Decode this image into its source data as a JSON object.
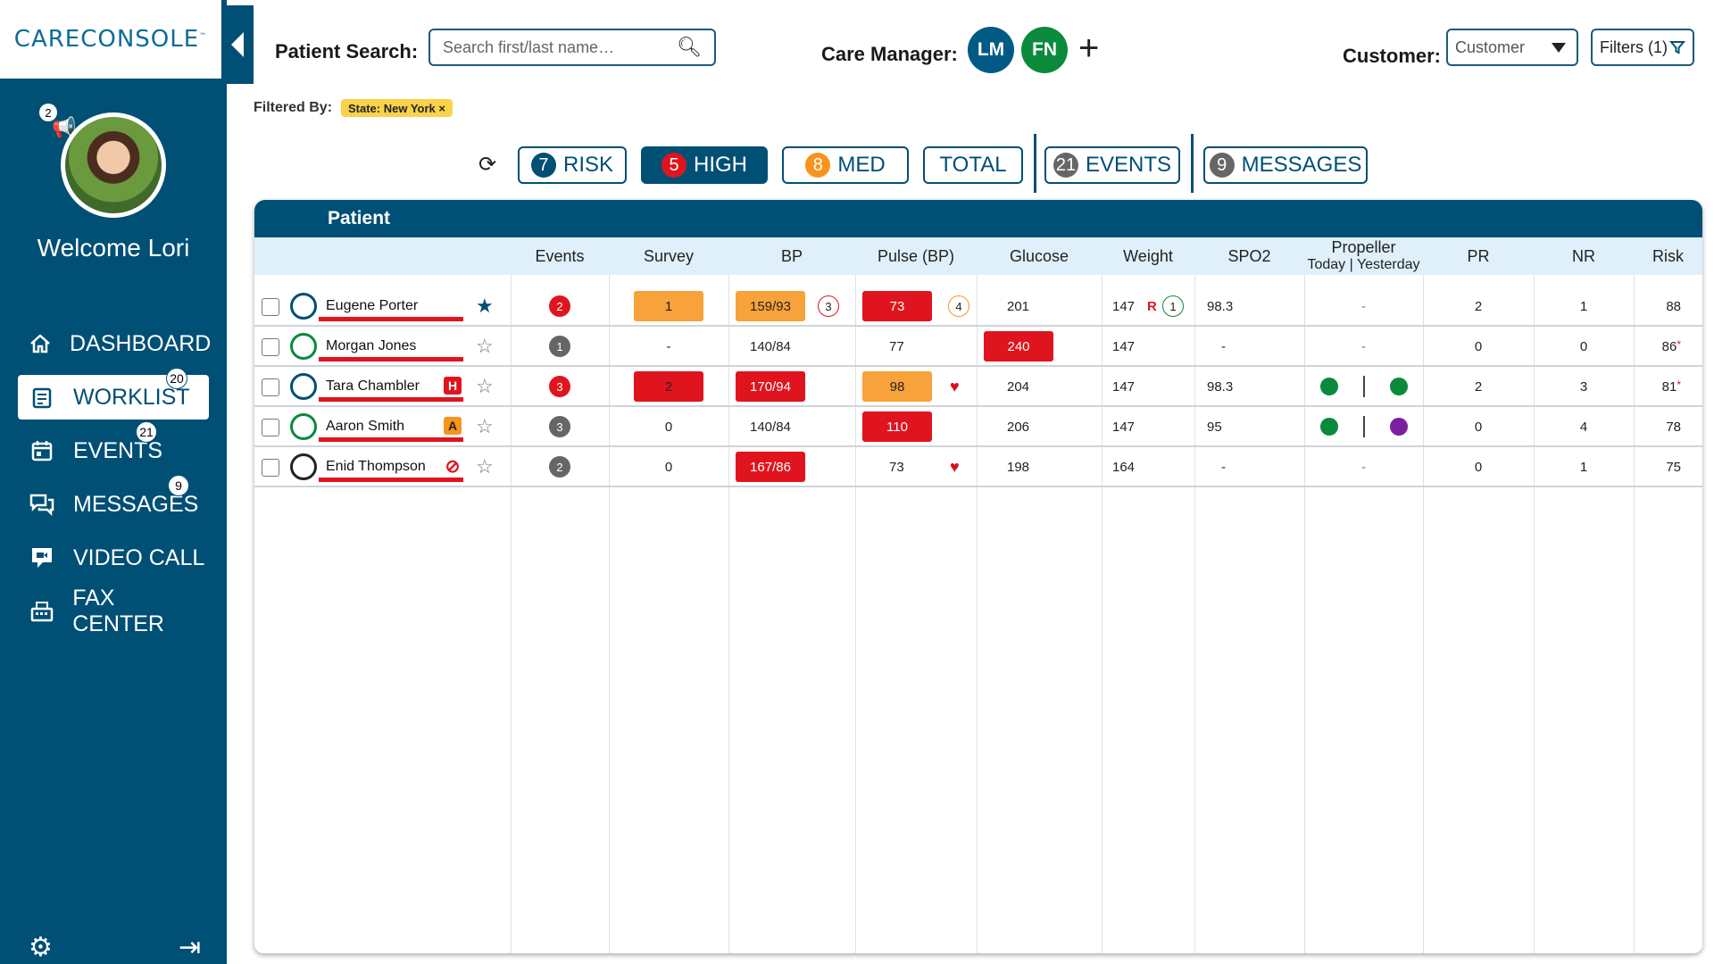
{
  "app": {
    "logo": "CARECONSOLE",
    "logo_tm": "™"
  },
  "sidebar": {
    "notif_count": "2",
    "welcome": "Welcome Lori",
    "items": [
      {
        "label": "DASHBOARD",
        "icon": "home-icon",
        "badge": ""
      },
      {
        "label": "WORKLIST",
        "icon": "clipboard-icon",
        "badge": "20"
      },
      {
        "label": "EVENTS",
        "icon": "calendar-icon",
        "badge": "21"
      },
      {
        "label": "MESSAGES",
        "icon": "chat-icon",
        "badge": "9"
      },
      {
        "label": "VIDEO CALL",
        "icon": "video-chat-icon",
        "badge": ""
      },
      {
        "label": "FAX CENTER",
        "icon": "fax-icon",
        "badge": ""
      }
    ]
  },
  "header": {
    "search_label": "Patient Search:",
    "search_placeholder": "Search first/last name…",
    "care_manager_label": "Care Manager:",
    "care_managers": [
      {
        "initials": "LM",
        "color": "#005a84"
      },
      {
        "initials": "FN",
        "color": "#0b8a3c"
      }
    ],
    "add_label": "+",
    "customer_label": "Customer:",
    "customer_value": "Customer",
    "filters_label": "Filters (1)",
    "filtered_by_label": "Filtered By:",
    "filter_chip": "State: New York ×"
  },
  "tabs": [
    {
      "num": "7",
      "label": "RISK",
      "num_color": "#004f75",
      "dark": false
    },
    {
      "num": "5",
      "label": "HIGH",
      "num_color": "#e0141e",
      "dark": true
    },
    {
      "num": "8",
      "label": "MED",
      "num_color": "#f7941d",
      "dark": false
    },
    {
      "num": "",
      "label": "TOTAL",
      "num_color": "",
      "dark": false
    },
    {
      "num": "21",
      "label": "EVENTS",
      "num_color": "#666666",
      "dark": false
    },
    {
      "num": "9",
      "label": "MESSAGES",
      "num_color": "#666666",
      "dark": false
    }
  ],
  "table": {
    "panel_title": "Patient",
    "headers": {
      "events": "Events",
      "survey": "Survey",
      "bp": "BP",
      "pulse": "Pulse (BP)",
      "glucose": "Glucose",
      "weight": "Weight",
      "spo2": "SPO2",
      "propeller": "Propeller",
      "propeller_sub": "Today | Yesterday",
      "pr": "PR",
      "nr": "NR",
      "risk": "Risk"
    },
    "rows": [
      {
        "name": "Eugene Porter",
        "ring": "#004f75",
        "flag": "",
        "flag_color": "",
        "starred": true,
        "events": "2",
        "events_color": "#e0141e",
        "survey": "1",
        "survey_bg": "#f7a23a",
        "bp": "159/93",
        "bp_bg": "#f7a23a",
        "bp_circ": "3",
        "bp_circ_color": "#e0141e",
        "pulse": "73",
        "pulse_bg": "#e0141e",
        "pulse_circ": "4",
        "pulse_circ_color": "#f7941d",
        "pulse_heart": false,
        "glucose": "201",
        "glucose_bg": "",
        "weight": "147",
        "weight_r": "R",
        "weight_circ": "1",
        "spo2": "98.3",
        "prop_today": "",
        "prop_yest": "",
        "prop_text": "-",
        "pr": "2",
        "nr": "1",
        "risk": "88",
        "risk_mark": ""
      },
      {
        "name": "Morgan Jones",
        "ring": "#0b8a3c",
        "flag": "",
        "flag_color": "",
        "starred": false,
        "events": "1",
        "events_color": "#666666",
        "survey": "-",
        "survey_bg": "",
        "bp": "140/84",
        "bp_bg": "",
        "bp_circ": "",
        "bp_circ_color": "",
        "pulse": "77",
        "pulse_bg": "",
        "pulse_circ": "",
        "pulse_circ_color": "",
        "pulse_heart": false,
        "glucose": "240",
        "glucose_bg": "#e0141e",
        "weight": "147",
        "weight_r": "",
        "weight_circ": "",
        "spo2": "-",
        "prop_today": "",
        "prop_yest": "",
        "prop_text": "-",
        "pr": "0",
        "nr": "0",
        "risk": "86",
        "risk_mark": "*"
      },
      {
        "name": "Tara Chambler",
        "ring": "#004f75",
        "flag": "H",
        "flag_color": "#e0141e",
        "starred": false,
        "events": "3",
        "events_color": "#e0141e",
        "survey": "2",
        "survey_bg": "#e0141e",
        "bp": "170/94",
        "bp_bg": "#e0141e",
        "bp_circ": "",
        "bp_circ_color": "",
        "pulse": "98",
        "pulse_bg": "#f7a23a",
        "pulse_circ": "",
        "pulse_circ_color": "",
        "pulse_heart": true,
        "glucose": "204",
        "glucose_bg": "",
        "weight": "147",
        "weight_r": "",
        "weight_circ": "",
        "spo2": "98.3",
        "prop_today": "#0b8a3c",
        "prop_yest": "#0b8a3c",
        "prop_text": "",
        "pr": "2",
        "nr": "3",
        "risk": "81",
        "risk_mark": "*"
      },
      {
        "name": "Aaron Smith",
        "ring": "#0b8a3c",
        "flag": "A",
        "flag_color": "#f7941d",
        "starred": false,
        "events": "3",
        "events_color": "#666666",
        "survey": "0",
        "survey_bg": "",
        "bp": "140/84",
        "bp_bg": "",
        "bp_circ": "",
        "bp_circ_color": "",
        "pulse": "110",
        "pulse_bg": "#e0141e",
        "pulse_circ": "",
        "pulse_circ_color": "",
        "pulse_heart": false,
        "glucose": "206",
        "glucose_bg": "",
        "weight": "147",
        "weight_r": "",
        "weight_circ": "",
        "spo2": "95",
        "prop_today": "#0b8a3c",
        "prop_yest": "#7a1fa2",
        "prop_text": "",
        "pr": "0",
        "nr": "4",
        "risk": "78",
        "risk_mark": ""
      },
      {
        "name": "Enid Thompson",
        "ring": "#222222",
        "flag": "⊘",
        "flag_color": "",
        "starred": false,
        "events": "2",
        "events_color": "#666666",
        "survey": "0",
        "survey_bg": "",
        "bp": "167/86",
        "bp_bg": "#e0141e",
        "bp_circ": "",
        "bp_circ_color": "",
        "pulse": "73",
        "pulse_bg": "",
        "pulse_circ": "",
        "pulse_circ_color": "",
        "pulse_heart": true,
        "glucose": "198",
        "glucose_bg": "",
        "weight": "164",
        "weight_r": "",
        "weight_circ": "",
        "spo2": "-",
        "prop_today": "",
        "prop_yest": "",
        "prop_text": "-",
        "pr": "0",
        "nr": "1",
        "risk": "75",
        "risk_mark": ""
      }
    ]
  }
}
